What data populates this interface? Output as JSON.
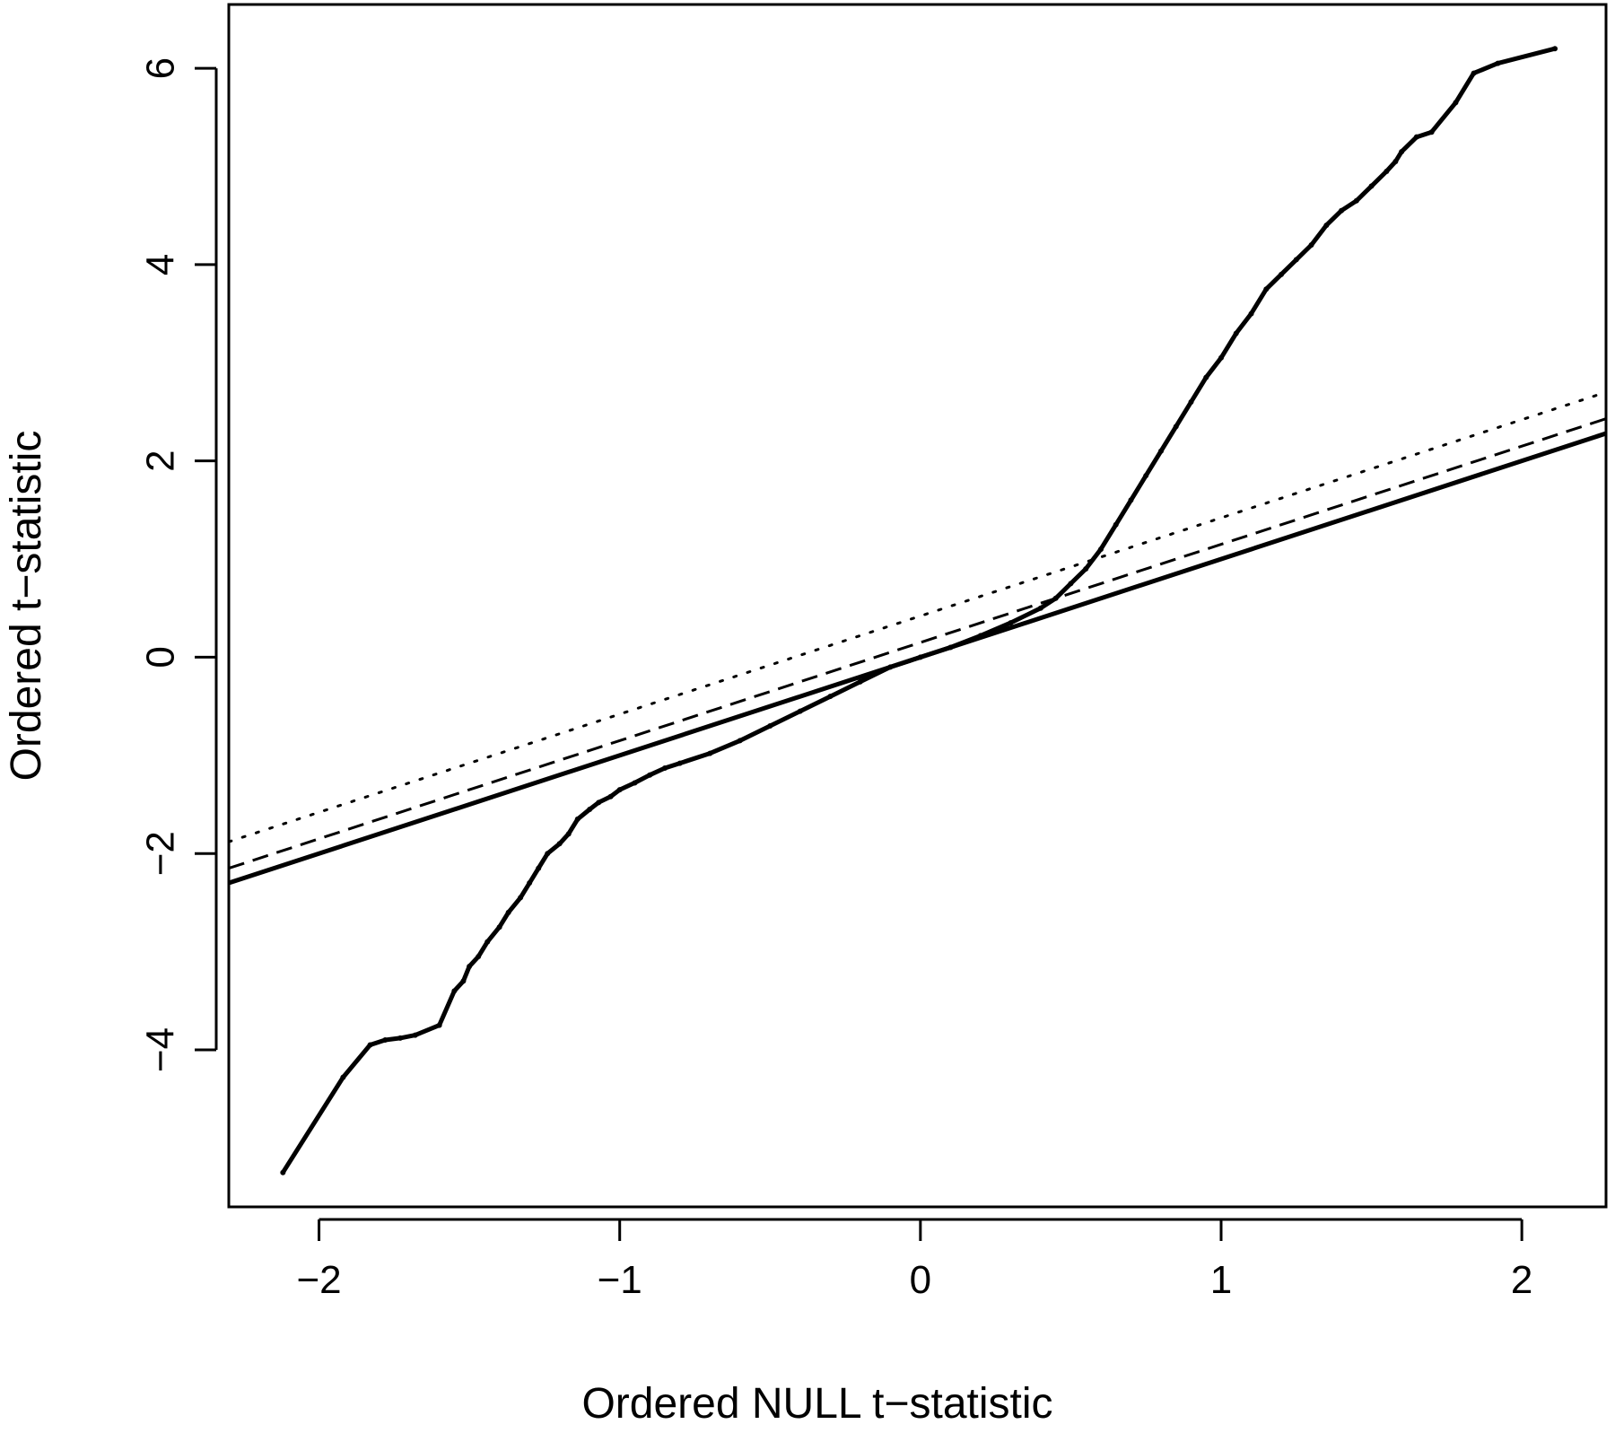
{
  "chart_data": {
    "type": "scatter",
    "title": "",
    "xlabel": "Ordered NULL t−statistic",
    "ylabel": "Ordered t−statistic",
    "xlim": [
      -2.3,
      2.28
    ],
    "ylim": [
      -5.6,
      6.65
    ],
    "x_ticks": [
      -2,
      -1,
      0,
      1,
      2
    ],
    "x_tick_labels": [
      "−2",
      "−1",
      "0",
      "1",
      "2"
    ],
    "y_ticks": [
      -4,
      -2,
      0,
      2,
      4,
      6
    ],
    "y_tick_labels": [
      "−4",
      "−2",
      "0",
      "2",
      "4",
      "6"
    ],
    "grid": false,
    "legend": "none",
    "colors": {
      "ink": "#000000",
      "background": "#ffffff"
    },
    "series": [
      {
        "style": "points",
        "x": [
          -2.12,
          -1.92,
          -1.83,
          -1.78,
          -1.73,
          -1.68,
          -1.6,
          -1.55,
          -1.52,
          -1.5,
          -1.47,
          -1.44,
          -1.4,
          -1.37,
          -1.33,
          -1.3,
          -1.27,
          -1.24,
          -1.2,
          -1.17,
          -1.14,
          -1.1,
          -1.07,
          -1.03,
          -1.0,
          -0.95,
          -0.9,
          -0.85,
          -0.8,
          -0.7,
          -0.6,
          -0.5,
          -0.4,
          -0.3,
          -0.2,
          -0.1,
          0.0,
          0.1,
          0.2,
          0.3,
          0.4,
          0.45,
          0.5,
          0.55,
          0.6,
          0.65,
          0.7,
          0.75,
          0.8,
          0.85,
          0.9,
          0.95,
          1.0,
          1.05,
          1.1,
          1.15,
          1.2,
          1.25,
          1.3,
          1.35,
          1.4,
          1.45,
          1.5,
          1.55,
          1.58,
          1.6,
          1.65,
          1.7,
          1.78,
          1.84,
          1.92,
          2.11
        ],
        "y": [
          -5.25,
          -4.28,
          -3.95,
          -3.9,
          -3.88,
          -3.85,
          -3.75,
          -3.4,
          -3.3,
          -3.15,
          -3.05,
          -2.9,
          -2.75,
          -2.6,
          -2.45,
          -2.3,
          -2.15,
          -2.0,
          -1.9,
          -1.8,
          -1.65,
          -1.55,
          -1.48,
          -1.42,
          -1.35,
          -1.28,
          -1.2,
          -1.13,
          -1.08,
          -0.98,
          -0.85,
          -0.7,
          -0.55,
          -0.4,
          -0.25,
          -0.1,
          0.0,
          0.1,
          0.22,
          0.35,
          0.5,
          0.6,
          0.75,
          0.9,
          1.1,
          1.35,
          1.6,
          1.85,
          2.1,
          2.35,
          2.6,
          2.85,
          3.05,
          3.3,
          3.5,
          3.75,
          3.9,
          4.05,
          4.2,
          4.4,
          4.55,
          4.65,
          4.8,
          4.95,
          5.05,
          5.15,
          5.3,
          5.35,
          5.65,
          5.95,
          6.05,
          6.2
        ]
      },
      {
        "style": "solid",
        "slope": 1.0,
        "intercept": 0.0
      },
      {
        "style": "dashed",
        "slope": 1.0,
        "intercept": 0.15
      },
      {
        "style": "dotted",
        "slope": 1.0,
        "intercept": 0.42
      }
    ]
  }
}
